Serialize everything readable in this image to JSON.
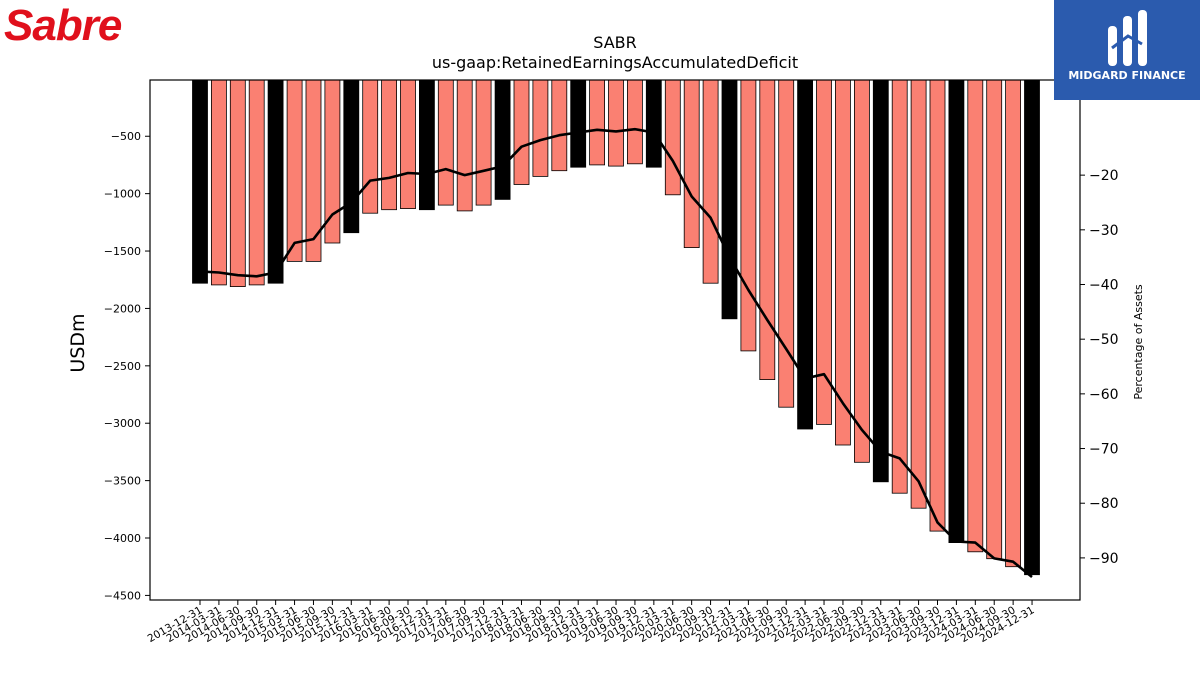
{
  "header": {
    "company_logo_text": "Sabre",
    "sponsor_name": "MIDGARD FINANCE"
  },
  "colors": {
    "bar_normal": "#fa8072",
    "bar_year_end": "#000000",
    "line": "#000000",
    "logo_red": "#e0101c",
    "sponsor_bg": "#2b5bae"
  },
  "chart_data": {
    "type": "bar",
    "title": "SABR",
    "subtitle": "us-gaap:RetainedEarningsAccumulatedDeficit",
    "ylabel": "USDm",
    "y2label": "Percentage of Assets",
    "ylim": [
      -4540,
      -10
    ],
    "y2lim": [
      -97.7,
      -2.6
    ],
    "yticks": [
      -500,
      -1000,
      -1500,
      -2000,
      -2500,
      -3000,
      -3500,
      -4000,
      -4500
    ],
    "y2ticks": [
      -20,
      -30,
      -40,
      -50,
      -60,
      -70,
      -80,
      -90
    ],
    "grid": false,
    "categories": [
      "2013-12-31",
      "2014-03-31",
      "2014-06-30",
      "2014-09-30",
      "2014-12-31",
      "2015-03-31",
      "2015-06-30",
      "2015-09-30",
      "2015-12-31",
      "2016-03-31",
      "2016-06-30",
      "2016-09-30",
      "2016-12-31",
      "2017-03-31",
      "2017-06-30",
      "2017-09-30",
      "2017-12-31",
      "2018-03-31",
      "2018-06-30",
      "2018-09-30",
      "2018-12-31",
      "2019-03-31",
      "2019-06-30",
      "2019-09-30",
      "2019-12-31",
      "2020-03-31",
      "2020-06-30",
      "2020-09-30",
      "2020-12-31",
      "2021-03-31",
      "2021-06-30",
      "2021-09-30",
      "2021-12-31",
      "2022-03-31",
      "2022-06-30",
      "2022-09-30",
      "2022-12-31",
      "2023-03-31",
      "2023-06-30",
      "2023-09-30",
      "2023-12-31",
      "2024-03-31",
      "2024-06-30",
      "2024-09-30",
      "2024-12-31"
    ],
    "series": [
      {
        "name": "",
        "values": [
          -1780,
          -1795,
          -1810,
          -1795,
          -1780,
          -1590,
          -1590,
          -1430,
          -1340,
          -1170,
          -1140,
          -1130,
          -1140,
          -1100,
          -1150,
          -1100,
          -1050,
          -920,
          -850,
          -800,
          -770,
          -750,
          -760,
          -740,
          -770,
          -1010,
          -1470,
          -1780,
          -2090,
          -2370,
          -2620,
          -2860,
          -3050,
          -3010,
          -3190,
          -3340,
          -3510,
          -3610,
          -3740,
          -3940,
          -4040,
          -4120,
          -4180,
          -4250,
          -4320
        ]
      },
      {
        "name": "",
        "axis": "right",
        "values": [
          -37.6,
          -37.8,
          -38.3,
          -38.5,
          -37.8,
          -32.4,
          -31.7,
          -27.2,
          -25.0,
          -21.0,
          -20.5,
          -19.6,
          -19.8,
          -18.9,
          -20.0,
          -19.2,
          -18.4,
          -14.8,
          -13.6,
          -12.7,
          -12.2,
          -11.7,
          -12.0,
          -11.6,
          -12.2,
          -17.4,
          -23.9,
          -27.8,
          -35.0,
          -41.0,
          -46.5,
          -51.8,
          -57.2,
          -56.4,
          -61.7,
          -66.6,
          -70.6,
          -71.8,
          -76.0,
          -83.5,
          -87.0,
          -87.2,
          -90.1,
          -90.7,
          -93.5
        ]
      }
    ]
  }
}
